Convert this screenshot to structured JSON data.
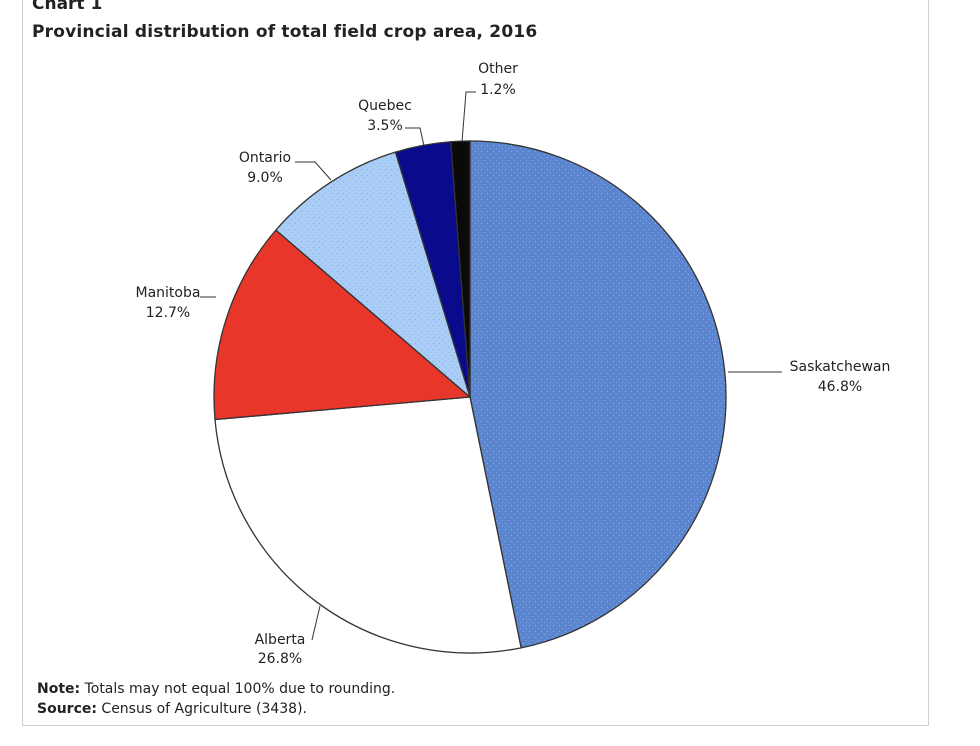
{
  "chart_label": "Chart 1",
  "chart_title": "Provincial distribution of total field crop area, 2016",
  "note": {
    "label": "Note:",
    "text": " Totals may not equal 100% due to rounding."
  },
  "source": {
    "label": "Source:",
    "text": " Census of Agriculture (3438)."
  },
  "colors": {
    "saskatchewan": "#5b86cf",
    "alberta": "#ffffff",
    "manitoba": "#e8372a",
    "ontario": "#a9cdf6",
    "quebec": "#0a0a8c",
    "other": "#0a0a0a",
    "outline": "#333333"
  },
  "chart_data": {
    "type": "pie",
    "title": "Provincial distribution of total field crop area, 2016",
    "unit": "%",
    "start_angle_deg": 0,
    "direction": "clockwise",
    "slices": [
      {
        "name": "Saskatchewan",
        "value": 46.8,
        "label": "46.8%",
        "color": "#5b86cf",
        "pattern": true
      },
      {
        "name": "Alberta",
        "value": 26.8,
        "label": "26.8%",
        "color": "#ffffff",
        "pattern": false
      },
      {
        "name": "Manitoba",
        "value": 12.7,
        "label": "12.7%",
        "color": "#e8372a",
        "pattern": false
      },
      {
        "name": "Ontario",
        "value": 9.0,
        "label": "9.0%",
        "color": "#a9cdf6",
        "pattern": true
      },
      {
        "name": "Quebec",
        "value": 3.5,
        "label": "3.5%",
        "color": "#0a0a8c",
        "pattern": false
      },
      {
        "name": "Other",
        "value": 1.2,
        "label": "1.2%",
        "color": "#0a0a0a",
        "pattern": false
      }
    ]
  }
}
